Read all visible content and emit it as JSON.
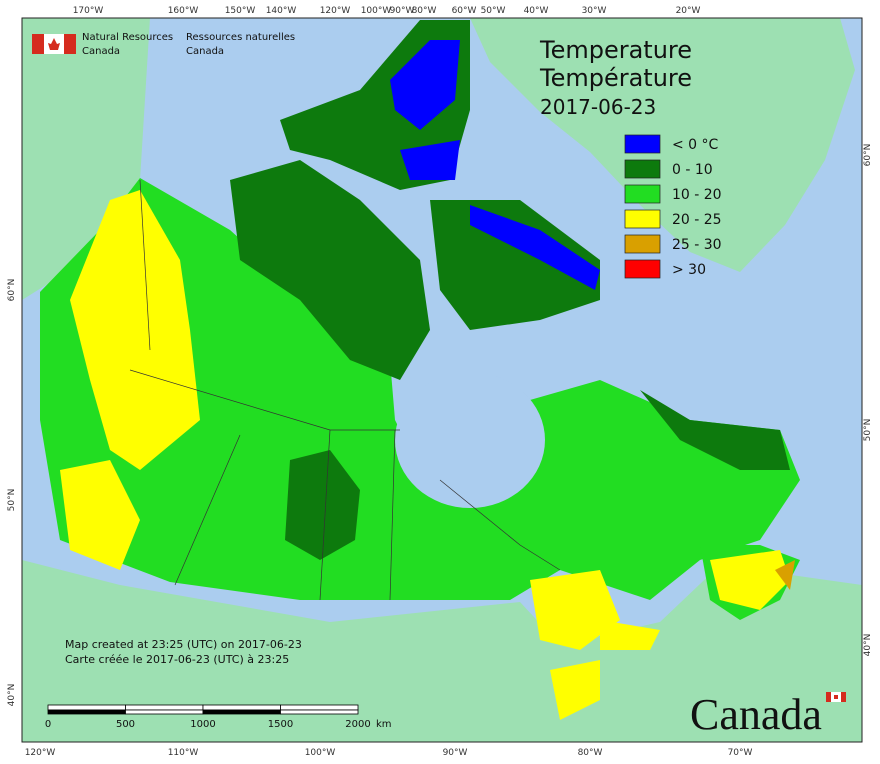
{
  "header": {
    "en_line1": "Natural Resources",
    "en_line2": "Canada",
    "fr_line1": "Ressources naturelles",
    "fr_line2": "Canada"
  },
  "title": {
    "en": "Temperature",
    "fr": "Température",
    "date": "2017-06-23"
  },
  "legend": [
    {
      "label": "< 0 °C",
      "color": "#0000ff"
    },
    {
      "label": "0 - 10",
      "color": "#0d7a0d"
    },
    {
      "label": "10 - 20",
      "color": "#22dd22"
    },
    {
      "label": "20 - 25",
      "color": "#ffff00"
    },
    {
      "label": "25 - 30",
      "color": "#d9a000"
    },
    {
      "label": "> 30",
      "color": "#ff0000"
    }
  ],
  "notes": [
    "Map created at 23:25 (UTC) on 2017-06-23",
    "Carte créée le 2017-06-23 (UTC) à 23:25"
  ],
  "scale_bar": {
    "labels": [
      "0",
      "500",
      "1000",
      "1500",
      "2000"
    ],
    "unit": "km"
  },
  "graticule": {
    "top": [
      "170°W",
      "160°W",
      "150°W",
      "140°W",
      "120°W",
      "100°W",
      "90°W",
      "80°W",
      "60°W",
      "50°W",
      "40°W",
      "30°W",
      "20°W"
    ],
    "bottom": [
      "120°W",
      "110°W",
      "100°W",
      "90°W",
      "80°W",
      "70°W"
    ],
    "left": [
      "60°N",
      "50°N",
      "40°N"
    ],
    "right": [
      "60°N",
      "50°N",
      "40°N"
    ]
  },
  "wordmark": "Canada"
}
